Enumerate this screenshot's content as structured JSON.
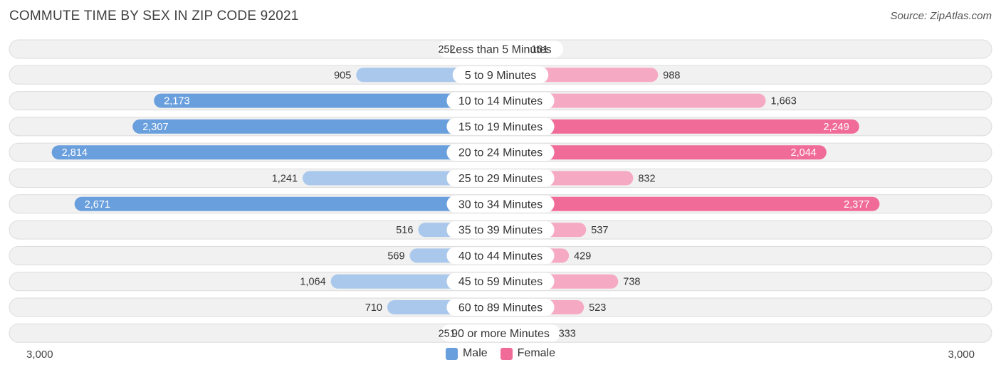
{
  "header": {
    "title": "COMMUTE TIME BY SEX IN ZIP CODE 92021",
    "source": "Source: ZipAtlas.com"
  },
  "colors": {
    "male_strong": "#6a9fdd",
    "male_light": "#a9c8ec",
    "female_strong": "#f06b97",
    "female_light": "#f6a9c3",
    "row_bg": "#f1f1f1",
    "row_border": "#dcdcdc"
  },
  "chart_data": {
    "type": "bar",
    "orientation": "horizontal-diverging",
    "title": "COMMUTE TIME BY SEX IN ZIP CODE 92021",
    "categories": [
      "Less than 5 Minutes",
      "5 to 9 Minutes",
      "10 to 14 Minutes",
      "15 to 19 Minutes",
      "20 to 24 Minutes",
      "25 to 29 Minutes",
      "30 to 34 Minutes",
      "35 to 39 Minutes",
      "40 to 44 Minutes",
      "45 to 59 Minutes",
      "60 to 89 Minutes",
      "90 or more Minutes"
    ],
    "series": [
      {
        "name": "Male",
        "values": [
          252,
          905,
          2173,
          2307,
          2814,
          1241,
          2671,
          516,
          569,
          1064,
          710,
          251
        ],
        "labels": [
          "252",
          "905",
          "2,173",
          "2,307",
          "2,814",
          "1,241",
          "2,671",
          "516",
          "569",
          "1,064",
          "710",
          "251"
        ]
      },
      {
        "name": "Female",
        "values": [
          161,
          988,
          1663,
          2249,
          2044,
          832,
          2377,
          537,
          429,
          738,
          523,
          333
        ],
        "labels": [
          "161",
          "988",
          "1,663",
          "2,249",
          "2,044",
          "832",
          "2,377",
          "537",
          "429",
          "738",
          "523",
          "333"
        ]
      }
    ],
    "xlim": [
      -3000,
      3000
    ],
    "axis_labels": {
      "left": "3,000",
      "right": "3,000"
    },
    "legend_position": "bottom-center"
  }
}
